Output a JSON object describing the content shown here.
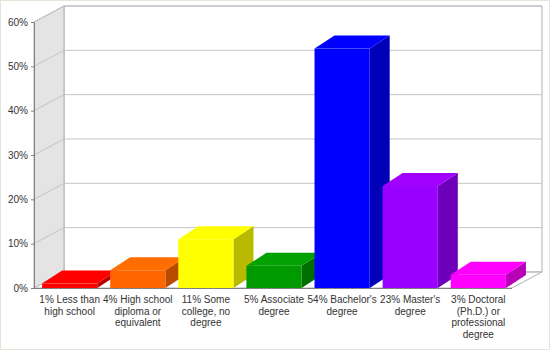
{
  "chart_data": {
    "type": "bar",
    "categories": [
      "1% Less than high school",
      "4% High school diploma or equivalent",
      "11% Some college, no degree",
      "5% Associate degree",
      "54% Bachelor's degree",
      "23% Master's degree",
      "3% Doctoral (Ph.D.) or professional degree"
    ],
    "values": [
      1,
      4,
      11,
      5,
      54,
      23,
      3
    ],
    "colors": [
      "#ff0000",
      "#ff6600",
      "#ffff00",
      "#009900",
      "#0000ff",
      "#9900ff",
      "#ff00ff"
    ],
    "ylim": [
      0,
      60
    ],
    "yticks": [
      {
        "value": 0,
        "label": "0%"
      },
      {
        "value": 10,
        "label": "10%"
      },
      {
        "value": 20,
        "label": "20%"
      },
      {
        "value": 30,
        "label": "30%"
      },
      {
        "value": 40,
        "label": "40%"
      },
      {
        "value": 50,
        "label": "50%"
      },
      {
        "value": 60,
        "label": "60%"
      }
    ],
    "grid": true
  }
}
